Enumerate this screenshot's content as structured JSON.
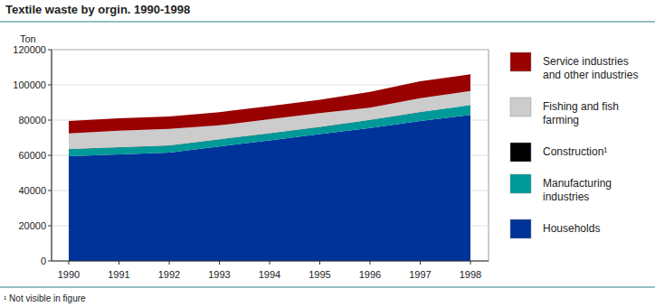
{
  "chart_data": {
    "type": "area",
    "title": "Textile waste by orgin. 1990-1998",
    "y_label": "Ton",
    "footnote": "¹ Not visible in figure",
    "categories": [
      "1990",
      "1991",
      "1992",
      "1993",
      "1994",
      "1995",
      "1996",
      "1997",
      "1998"
    ],
    "series": [
      {
        "name": "Households",
        "color": "#003399",
        "values": [
          59500,
          60500,
          61500,
          65000,
          68500,
          72000,
          75500,
          79500,
          83000
        ]
      },
      {
        "name": "Manufacturing industries",
        "color": "#009999",
        "values": [
          4000,
          4000,
          4000,
          4000,
          4000,
          4000,
          4500,
          5000,
          5500
        ]
      },
      {
        "name": "Construction¹",
        "color": "#000000",
        "values": [
          100,
          100,
          100,
          100,
          100,
          100,
          100,
          100,
          100
        ]
      },
      {
        "name": "Fishing and fish farming",
        "color": "#cccccc",
        "values": [
          8900,
          9400,
          9400,
          7900,
          7900,
          7900,
          6900,
          7900,
          7900
        ]
      },
      {
        "name": "Service industries and other industries",
        "color": "#990000",
        "values": [
          7000,
          7000,
          7000,
          7500,
          7500,
          7500,
          9000,
          9500,
          9500
        ]
      }
    ],
    "stacked": true,
    "grid": true,
    "legend": "right",
    "ylim": [
      0,
      120000
    ],
    "yticks": [
      0,
      20000,
      40000,
      60000,
      80000,
      100000,
      120000
    ]
  }
}
